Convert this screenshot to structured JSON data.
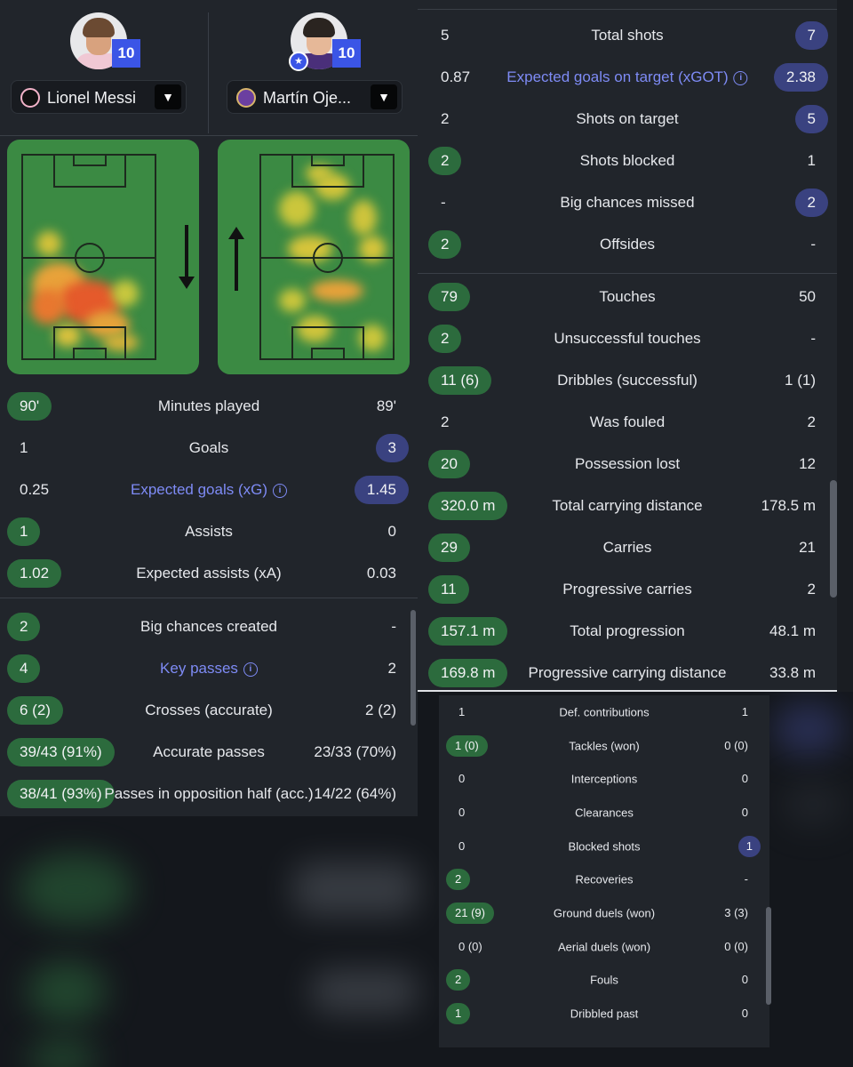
{
  "players": [
    {
      "name": "Lionel Messi",
      "number": "10"
    },
    {
      "name": "Martín Oje...",
      "number": "10"
    }
  ],
  "colors": {
    "accent": "#3b55e6",
    "green_pill": "#2c6b3d",
    "blue_pill": "#3a4280",
    "link": "#7e8bf5",
    "panel": "#21252b"
  },
  "left_stats": [
    {
      "label": "Minutes played",
      "left": "90'",
      "right": "89'",
      "winner": "left",
      "link": false
    },
    {
      "label": "Goals",
      "left": "1",
      "right": "3",
      "winner": "right",
      "link": false
    },
    {
      "label": "Expected goals (xG)",
      "left": "0.25",
      "right": "1.45",
      "winner": "right",
      "link": true
    },
    {
      "label": "Assists",
      "left": "1",
      "right": "0",
      "winner": "left",
      "link": false
    },
    {
      "label": "Expected assists (xA)",
      "left": "1.02",
      "right": "0.03",
      "winner": "left",
      "link": false
    }
  ],
  "left_stats2": [
    {
      "label": "Big chances created",
      "left": "2",
      "right": "-",
      "winner": "left",
      "link": false
    },
    {
      "label": "Key passes",
      "left": "4",
      "right": "2",
      "winner": "left",
      "link": true
    },
    {
      "label": "Crosses (accurate)",
      "left": "6 (2)",
      "right": "2 (2)",
      "winner": "left",
      "link": false
    },
    {
      "label": "Accurate passes",
      "left": "39/43 (91%)",
      "right": "23/33 (70%)",
      "winner": "left",
      "link": false
    },
    {
      "label": "Passes in opposition half (acc.)",
      "left": "38/41 (93%)",
      "right": "14/22 (64%)",
      "winner": "left",
      "link": false
    }
  ],
  "right_stats1": [
    {
      "label": "Total shots",
      "left": "5",
      "right": "7",
      "winner": "right",
      "link": false
    },
    {
      "label": "Expected goals on target (xGOT)",
      "left": "0.87",
      "right": "2.38",
      "winner": "right",
      "link": true
    },
    {
      "label": "Shots on target",
      "left": "2",
      "right": "5",
      "winner": "right",
      "link": false
    },
    {
      "label": "Shots blocked",
      "left": "2",
      "right": "1",
      "winner": "left",
      "link": false
    },
    {
      "label": "Big chances missed",
      "left": "-",
      "right": "2",
      "winner": "right",
      "link": false
    },
    {
      "label": "Offsides",
      "left": "2",
      "right": "-",
      "winner": "left",
      "link": false
    }
  ],
  "right_stats2": [
    {
      "label": "Touches",
      "left": "79",
      "right": "50",
      "winner": "left",
      "link": false
    },
    {
      "label": "Unsuccessful touches",
      "left": "2",
      "right": "-",
      "winner": "left",
      "link": false
    },
    {
      "label": "Dribbles (successful)",
      "left": "11 (6)",
      "right": "1 (1)",
      "winner": "left",
      "link": false
    },
    {
      "label": "Was fouled",
      "left": "2",
      "right": "2",
      "winner": "none",
      "link": false
    },
    {
      "label": "Possession lost",
      "left": "20",
      "right": "12",
      "winner": "left",
      "link": false
    },
    {
      "label": "Total carrying distance",
      "left": "320.0 m",
      "right": "178.5 m",
      "winner": "left",
      "link": false
    },
    {
      "label": "Carries",
      "left": "29",
      "right": "21",
      "winner": "left",
      "link": false
    },
    {
      "label": "Progressive carries",
      "left": "11",
      "right": "2",
      "winner": "left",
      "link": false
    },
    {
      "label": "Total progression",
      "left": "157.1 m",
      "right": "48.1 m",
      "winner": "left",
      "link": false
    },
    {
      "label": "Progressive carrying distance",
      "left": "169.8 m",
      "right": "33.8 m",
      "winner": "left",
      "link": false
    }
  ],
  "defense_stats": [
    {
      "label": "Def. contributions",
      "left": "1",
      "right": "1",
      "winner": "none",
      "link": false
    },
    {
      "label": "Tackles (won)",
      "left": "1 (0)",
      "right": "0 (0)",
      "winner": "left",
      "link": false
    },
    {
      "label": "Interceptions",
      "left": "0",
      "right": "0",
      "winner": "none",
      "link": false
    },
    {
      "label": "Clearances",
      "left": "0",
      "right": "0",
      "winner": "none",
      "link": false
    },
    {
      "label": "Blocked shots",
      "left": "0",
      "right": "1",
      "winner": "right",
      "link": false
    },
    {
      "label": "Recoveries",
      "left": "2",
      "right": "-",
      "winner": "left",
      "link": false
    },
    {
      "label": "Ground duels (won)",
      "left": "21 (9)",
      "right": "3 (3)",
      "winner": "left",
      "link": false
    },
    {
      "label": "Aerial duels (won)",
      "left": "0 (0)",
      "right": "0 (0)",
      "winner": "none",
      "link": false
    },
    {
      "label": "Fouls",
      "left": "2",
      "right": "0",
      "winner": "left",
      "link": false
    },
    {
      "label": "Dribbled past",
      "left": "1",
      "right": "0",
      "winner": "left",
      "link": false
    }
  ]
}
